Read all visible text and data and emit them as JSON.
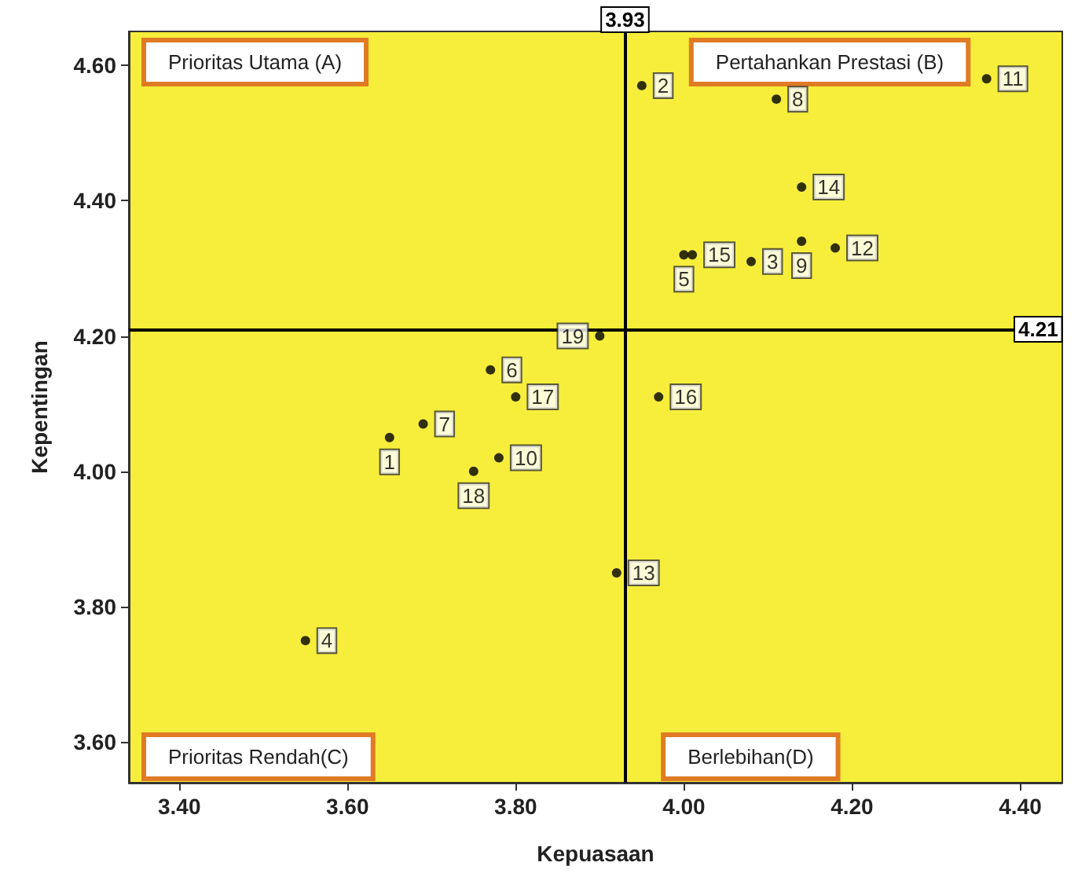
{
  "chart_data": {
    "type": "scatter",
    "xlabel": "Kepuasaan",
    "ylabel": "Kepentingan",
    "xlim": [
      3.34,
      4.45
    ],
    "ylim": [
      3.54,
      4.65
    ],
    "xticks": [
      {
        "value": 3.4,
        "label": "3.40"
      },
      {
        "value": 3.6,
        "label": "3.60"
      },
      {
        "value": 3.8,
        "label": "3.80"
      },
      {
        "value": 4.0,
        "label": "4.00"
      },
      {
        "value": 4.2,
        "label": "4.20"
      },
      {
        "value": 4.4,
        "label": "4.40"
      }
    ],
    "yticks": [
      {
        "value": 3.6,
        "label": "3.60"
      },
      {
        "value": 3.8,
        "label": "3.80"
      },
      {
        "value": 4.0,
        "label": "4.00"
      },
      {
        "value": 4.2,
        "label": "4.20"
      },
      {
        "value": 4.4,
        "label": "4.40"
      },
      {
        "value": 4.6,
        "label": "4.60"
      }
    ],
    "grid": false,
    "marker": "circle",
    "series": [
      {
        "name": "1",
        "color": "#000000",
        "x": [
          3.65
        ],
        "values": [
          4.05
        ]
      },
      {
        "name": "2",
        "color": "#000000",
        "x": [
          3.95
        ],
        "values": [
          4.57
        ]
      },
      {
        "name": "3",
        "color": "#000000",
        "x": [
          4.08
        ],
        "values": [
          4.31
        ]
      },
      {
        "name": "4",
        "color": "#000000",
        "x": [
          3.55
        ],
        "values": [
          3.75
        ]
      },
      {
        "name": "5",
        "color": "#000000",
        "x": [
          4.0
        ],
        "values": [
          4.32
        ]
      },
      {
        "name": "6",
        "color": "#000000",
        "x": [
          3.77
        ],
        "values": [
          4.15
        ]
      },
      {
        "name": "7",
        "color": "#000000",
        "x": [
          3.69
        ],
        "values": [
          4.07
        ]
      },
      {
        "name": "8",
        "color": "#000000",
        "x": [
          4.11
        ],
        "values": [
          4.55
        ]
      },
      {
        "name": "9",
        "color": "#000000",
        "x": [
          4.14
        ],
        "values": [
          4.34
        ]
      },
      {
        "name": "10",
        "color": "#000000",
        "x": [
          3.78
        ],
        "values": [
          4.02
        ]
      },
      {
        "name": "11",
        "color": "#000000",
        "x": [
          4.36
        ],
        "values": [
          4.58
        ]
      },
      {
        "name": "12",
        "color": "#000000",
        "x": [
          4.18
        ],
        "values": [
          4.33
        ]
      },
      {
        "name": "13",
        "color": "#000000",
        "x": [
          3.92
        ],
        "values": [
          3.85
        ]
      },
      {
        "name": "14",
        "color": "#000000",
        "x": [
          4.14
        ],
        "values": [
          4.42
        ]
      },
      {
        "name": "15",
        "color": "#000000",
        "x": [
          4.01
        ],
        "values": [
          4.32
        ]
      },
      {
        "name": "16",
        "color": "#000000",
        "x": [
          3.97
        ],
        "values": [
          4.11
        ]
      },
      {
        "name": "17",
        "color": "#000000",
        "x": [
          3.8
        ],
        "values": [
          4.11
        ]
      },
      {
        "name": "18",
        "color": "#000000",
        "x": [
          3.75
        ],
        "values": [
          4.0
        ]
      },
      {
        "name": "19",
        "color": "#000000",
        "x": [
          3.9
        ],
        "values": [
          4.2
        ]
      }
    ],
    "ref_lines": [
      {
        "axis": "x",
        "value": 3.93,
        "label": "3.93",
        "color": "#000000"
      },
      {
        "axis": "y",
        "value": 4.21,
        "label": "4.21",
        "color": "#000000"
      }
    ],
    "annotations": [
      "Prioritas Utama (A)",
      "Pertahankan Prestasi (B)",
      "Prioritas Rendah(C)",
      "Berlebihan(D)"
    ]
  }
}
